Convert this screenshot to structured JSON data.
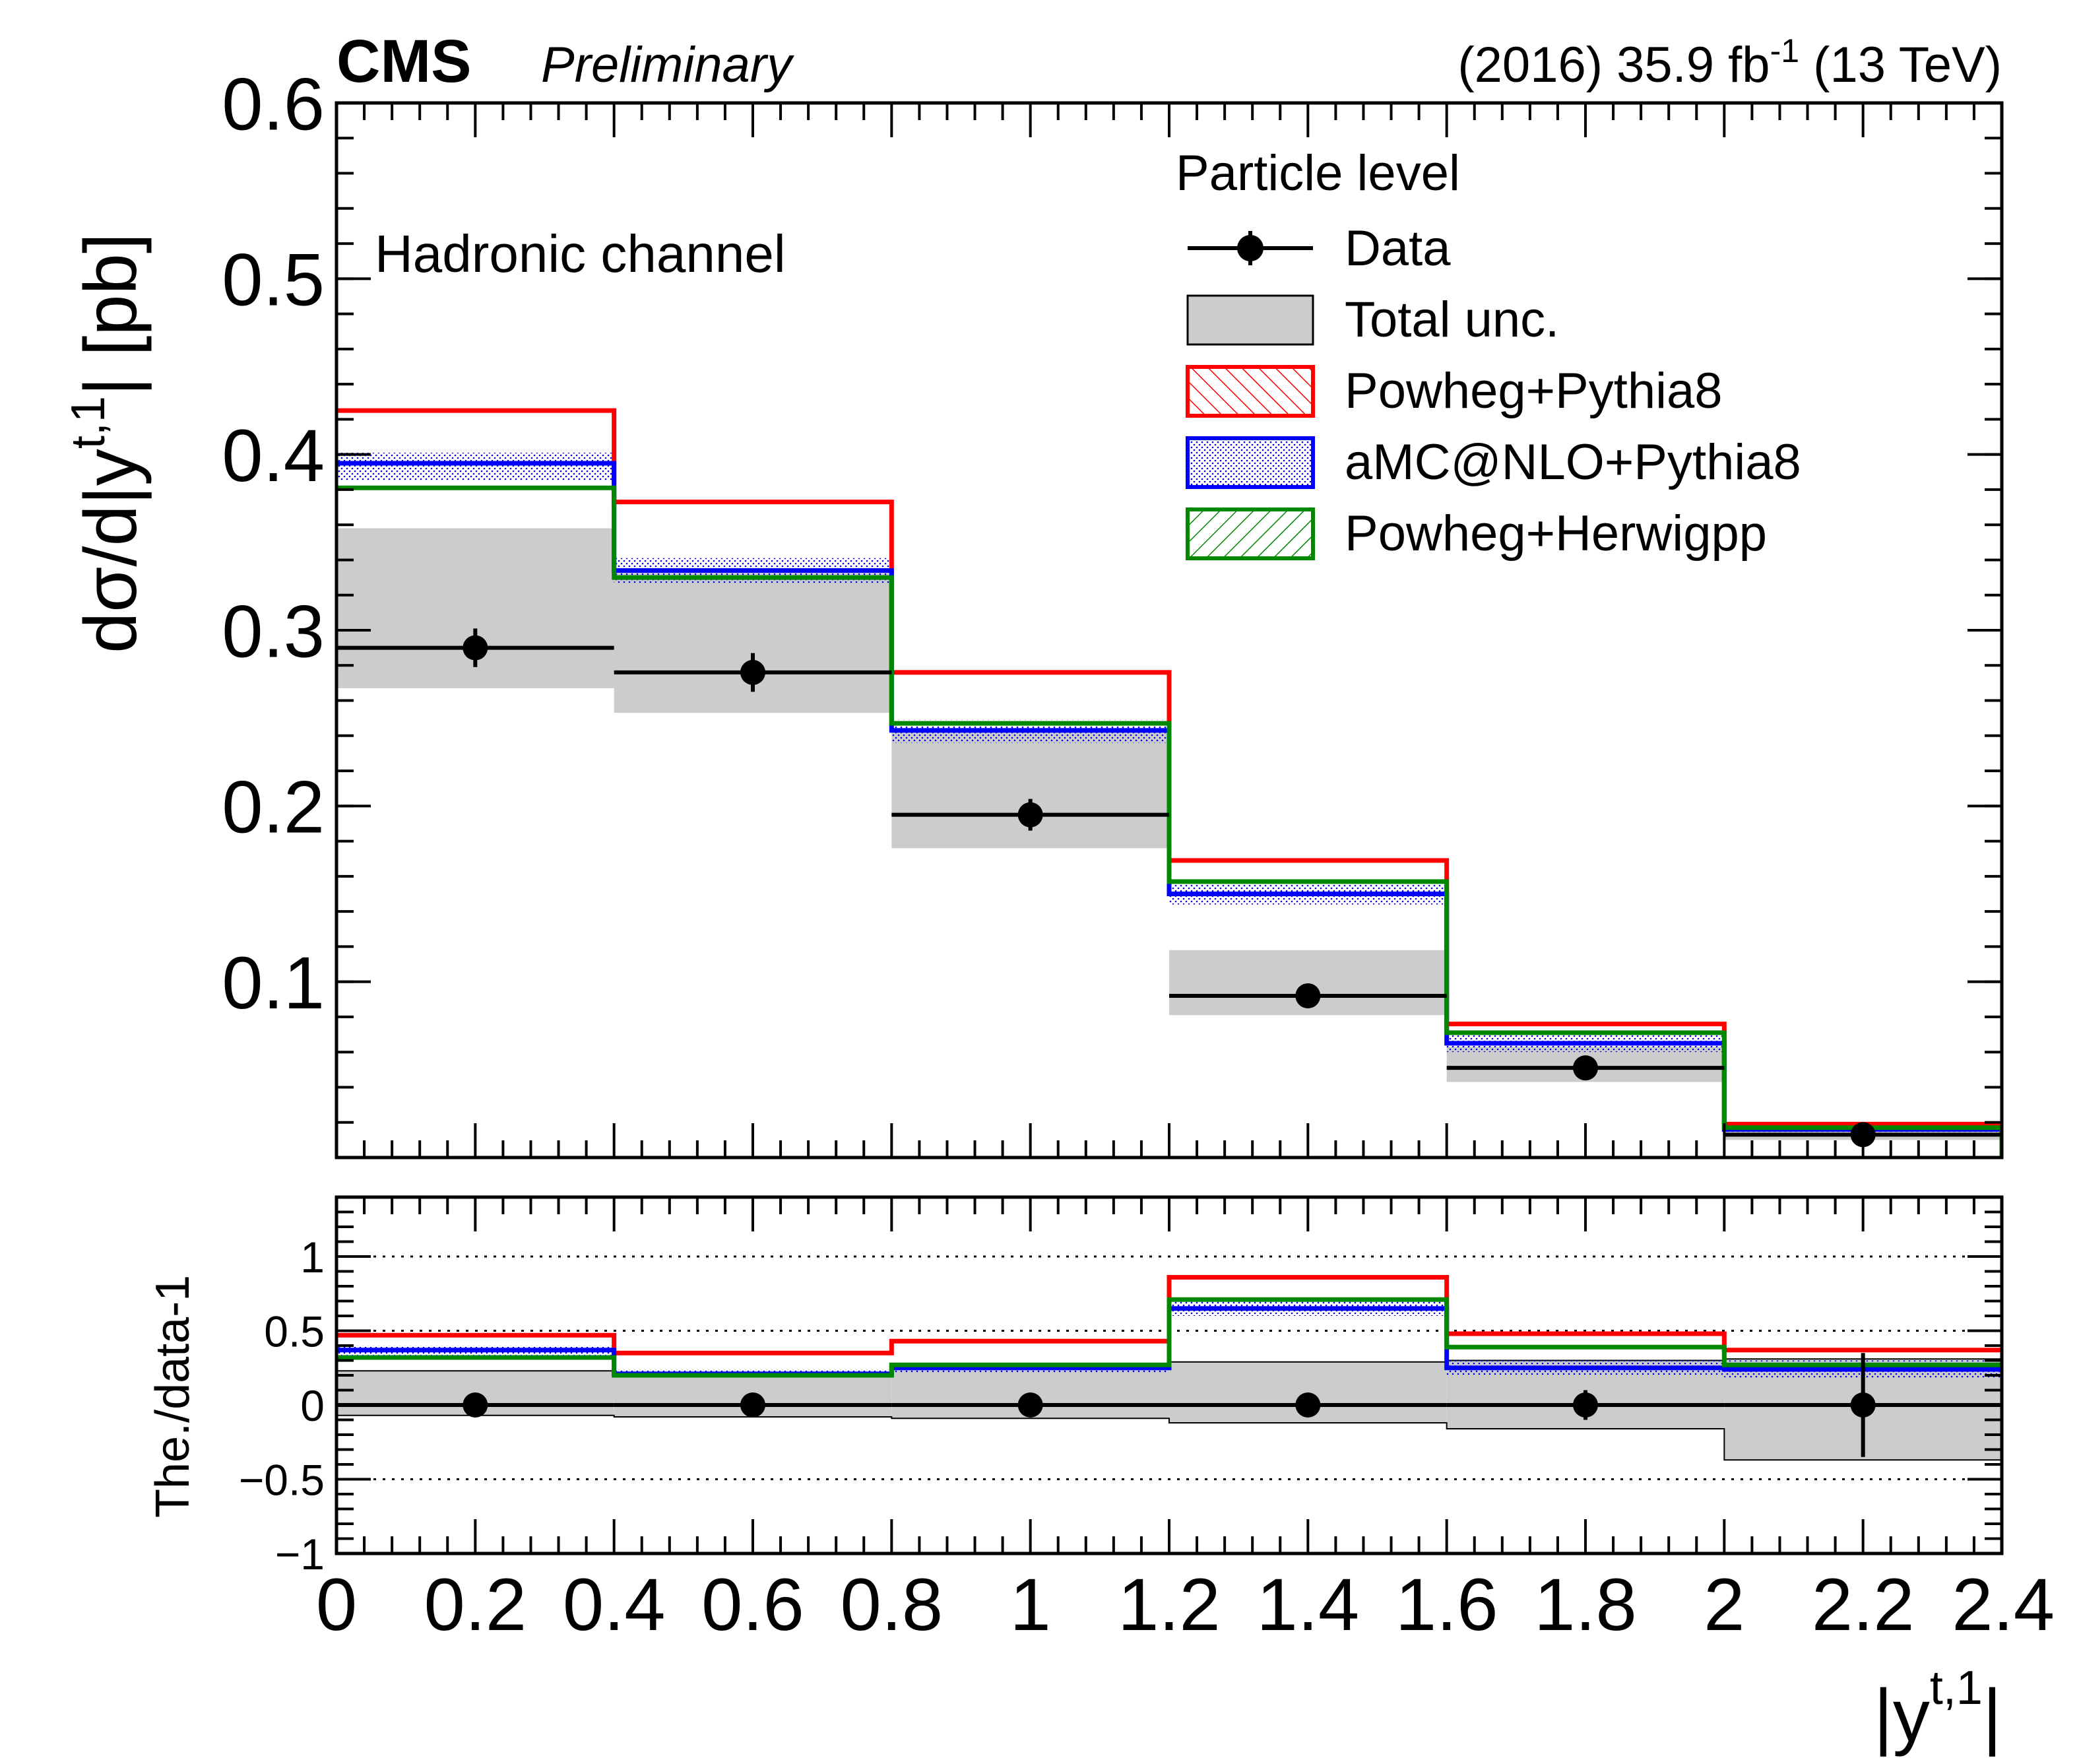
{
  "header": {
    "experiment": "CMS",
    "status": "Preliminary",
    "lumi_prefix": "(2016) 35.9 fb",
    "lumi_exponent": "-1",
    "lumi_suffix": " (13 TeV)"
  },
  "colors": {
    "data": "#000000",
    "total_unc_fill": "#cccccc",
    "powheg_pythia8": "#ff0000",
    "amcnlo_pythia8": "#0000ff",
    "powheg_herwigpp": "#008800"
  },
  "chart_data": [
    {
      "type": "histogram",
      "panel": "main",
      "annotation": "Hadronic channel",
      "ylabel": "dσ/d|y",
      "ylabel_superscript": "t,1",
      "ylabel_suffix": "| [pb]",
      "ylim": [
        0.0,
        0.6
      ],
      "yticks": [
        0.1,
        0.2,
        0.3,
        0.4,
        0.5,
        0.6
      ],
      "ytick_labels": [
        "0.1",
        "0.2",
        "0.3",
        "0.4",
        "0.5",
        "0.6"
      ],
      "xlim": [
        0.0,
        2.4
      ],
      "bin_edges": [
        0.0,
        0.4,
        0.8,
        1.2,
        1.6,
        2.0,
        2.4
      ],
      "legend": {
        "title": "Particle level",
        "position": "top-right",
        "entries": [
          "Data",
          "Total unc.",
          "Powheg+Pythia8",
          "aMC@NLO+Pythia8",
          "Powheg+Herwigpp"
        ]
      },
      "data": {
        "name": "Data",
        "x": [
          0.2,
          0.6,
          1.0,
          1.4,
          1.8,
          2.2
        ],
        "values": [
          0.29,
          0.276,
          0.195,
          0.092,
          0.051,
          0.013
        ],
        "stat_err": [
          0.011,
          0.011,
          0.009,
          0.006,
          0.004,
          0.005
        ],
        "total_unc_low": [
          0.267,
          0.253,
          0.176,
          0.081,
          0.043,
          0.01
        ],
        "total_unc_high": [
          0.358,
          0.334,
          0.244,
          0.118,
          0.063,
          0.018
        ]
      },
      "series": [
        {
          "name": "Powheg+Pythia8",
          "values": [
            0.425,
            0.373,
            0.276,
            0.169,
            0.076,
            0.019
          ],
          "band_low": [
            0.425,
            0.373,
            0.276,
            0.169,
            0.076,
            0.019
          ],
          "band_high": [
            0.425,
            0.373,
            0.276,
            0.169,
            0.076,
            0.019
          ]
        },
        {
          "name": "aMC@NLO+Pythia8",
          "values": [
            0.395,
            0.334,
            0.243,
            0.15,
            0.065,
            0.016
          ],
          "band_low": [
            0.385,
            0.327,
            0.236,
            0.144,
            0.06,
            0.013
          ],
          "band_high": [
            0.401,
            0.341,
            0.249,
            0.156,
            0.07,
            0.018
          ]
        },
        {
          "name": "Powheg+Herwigpp",
          "values": [
            0.381,
            0.33,
            0.247,
            0.157,
            0.071,
            0.017
          ],
          "band_low": [
            0.381,
            0.33,
            0.247,
            0.157,
            0.071,
            0.017
          ],
          "band_high": [
            0.381,
            0.33,
            0.247,
            0.157,
            0.071,
            0.017
          ]
        }
      ]
    },
    {
      "type": "histogram",
      "panel": "ratio",
      "ylabel": "The./data-1",
      "xlabel": "|y",
      "xlabel_superscript": "t,1",
      "xlabel_suffix": "|",
      "ylim": [
        -1.0,
        1.4
      ],
      "yticks": [
        -1,
        -0.5,
        0,
        0.5,
        1
      ],
      "ytick_labels": [
        "−1",
        "−0.5",
        "0",
        "0.5",
        "1"
      ],
      "reference_lines": [
        -0.5,
        0.5,
        1.0
      ],
      "xlim": [
        0.0,
        2.4
      ],
      "xticks": [
        0,
        0.2,
        0.4,
        0.6,
        0.8,
        1.0,
        1.2,
        1.4,
        1.6,
        1.8,
        2.0,
        2.2,
        2.4
      ],
      "xtick_labels": [
        "0",
        "0.2",
        "0.4",
        "0.6",
        "0.8",
        "1",
        "1.2",
        "1.4",
        "1.6",
        "1.8",
        "2",
        "2.2",
        "2.4"
      ],
      "bin_edges": [
        0.0,
        0.4,
        0.8,
        1.2,
        1.6,
        2.0,
        2.4
      ],
      "data": {
        "name": "Data",
        "x": [
          0.2,
          0.6,
          1.0,
          1.4,
          1.8,
          2.2
        ],
        "values": [
          0,
          0,
          0,
          0,
          0,
          0
        ],
        "stat_err": [
          0.04,
          0.04,
          0.05,
          0.07,
          0.1,
          0.35
        ],
        "total_unc_low": [
          -0.07,
          -0.08,
          -0.09,
          -0.12,
          -0.16,
          -0.37
        ],
        "total_unc_high": [
          0.23,
          0.21,
          0.25,
          0.29,
          0.3,
          0.31
        ]
      },
      "series": [
        {
          "name": "Powheg+Pythia8",
          "values": [
            0.47,
            0.35,
            0.43,
            0.86,
            0.48,
            0.37
          ]
        },
        {
          "name": "aMC@NLO+Pythia8",
          "values": [
            0.37,
            0.21,
            0.25,
            0.65,
            0.25,
            0.24
          ],
          "band_low": [
            0.33,
            0.19,
            0.22,
            0.6,
            0.2,
            0.18
          ],
          "band_high": [
            0.4,
            0.24,
            0.28,
            0.7,
            0.3,
            0.3
          ]
        },
        {
          "name": "Powheg+Herwigpp",
          "values": [
            0.32,
            0.2,
            0.27,
            0.71,
            0.39,
            0.27
          ]
        }
      ]
    }
  ]
}
